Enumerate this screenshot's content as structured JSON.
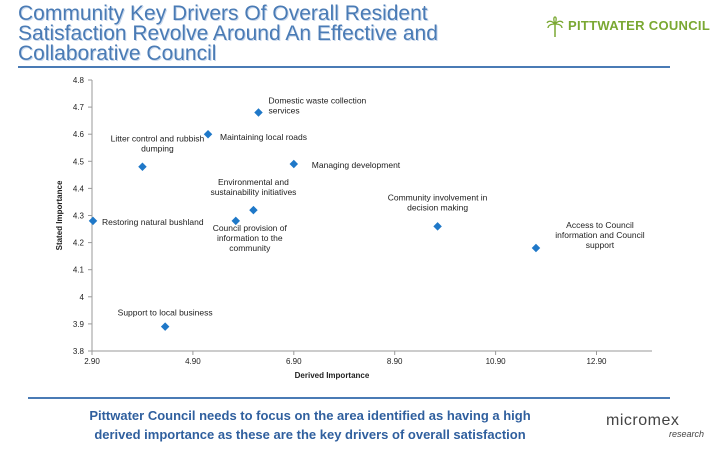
{
  "header": {
    "title_lines": [
      "Community Key Drivers Of Overall Resident",
      "Satisfaction Revolve Around An Effective and",
      "Collaborative Council"
    ],
    "logo_text": "PITTWATER COUNCIL",
    "accent_color": "#4a7bb5",
    "logo_color": "#7aa832"
  },
  "chart_data": {
    "type": "scatter",
    "xlabel": "Derived Importance",
    "ylabel": "Stated Importance",
    "xlim": [
      2.9,
      14.0
    ],
    "ylim": [
      3.8,
      4.8
    ],
    "xticks": [
      "2.90",
      "4.90",
      "6.90",
      "8.90",
      "10.90",
      "12.90"
    ],
    "xtick_values": [
      2.9,
      4.9,
      6.9,
      8.9,
      10.9,
      12.9
    ],
    "yticks": [
      "3.8",
      "3.9",
      "4",
      "4.1",
      "4.2",
      "4.3",
      "4.4",
      "4.5",
      "4.6",
      "4.7",
      "4.8"
    ],
    "ytick_values": [
      3.8,
      3.9,
      4.0,
      4.1,
      4.2,
      4.3,
      4.4,
      4.5,
      4.6,
      4.7,
      4.8
    ],
    "marker_color": "#1f78c8",
    "grid": false,
    "points": [
      {
        "label": [
          "Domestic waste collection",
          "services"
        ],
        "x": 6.2,
        "y": 4.68
      },
      {
        "label": [
          "Maintaining local roads"
        ],
        "x": 5.2,
        "y": 4.6
      },
      {
        "label": [
          "Litter control and rubbish",
          "dumping"
        ],
        "x": 3.9,
        "y": 4.48
      },
      {
        "label": [
          "Managing development"
        ],
        "x": 6.9,
        "y": 4.49
      },
      {
        "label": [
          "Environmental and",
          "sustainability initiatives"
        ],
        "x": 6.1,
        "y": 4.32
      },
      {
        "label": [
          "Restoring natural bushland"
        ],
        "x": 2.92,
        "y": 4.28
      },
      {
        "label": [
          "Council provision of",
          "information to the",
          "community"
        ],
        "x": 5.75,
        "y": 4.28
      },
      {
        "label": [
          "Community involvement in",
          "decision making"
        ],
        "x": 9.75,
        "y": 4.26
      },
      {
        "label": [
          "Access to Council",
          "information and Council",
          "support"
        ],
        "x": 11.7,
        "y": 4.18
      },
      {
        "label": [
          "Support to local business"
        ],
        "x": 4.35,
        "y": 3.89
      }
    ]
  },
  "footer": {
    "lines": [
      "Pittwater  Council needs to focus on the area identified as having a high",
      "derived importance as these are the key drivers of overall satisfaction"
    ],
    "logo_name": "micromex",
    "logo_sub": "research"
  }
}
